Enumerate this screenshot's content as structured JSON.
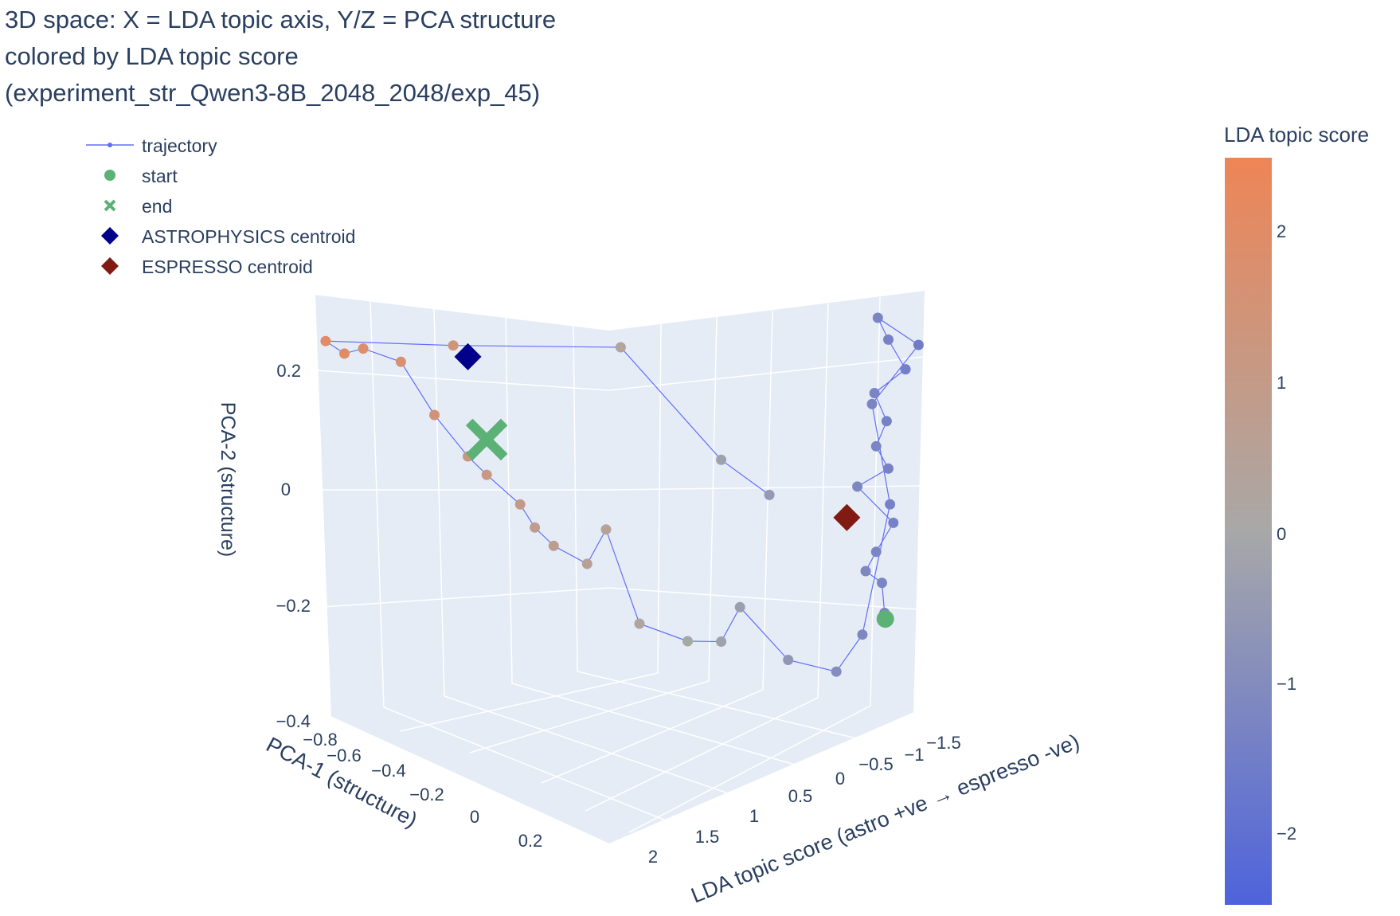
{
  "title": {
    "line1": "3D space: X = LDA topic axis, Y/Z = PCA structure",
    "line2": "colored by LDA topic score",
    "line3": "(experiment_str_Qwen3-8B_2048_2048/exp_45)"
  },
  "legend": {
    "trajectory": "trajectory",
    "start": "start",
    "end": "end",
    "astro": "ASTROPHYSICS centroid",
    "espresso": "ESPRESSO centroid"
  },
  "colorbar": {
    "title": "LDA topic score",
    "ticks": [
      "2",
      "1",
      "0",
      "−1",
      "−2"
    ]
  },
  "colors": {
    "trajectory_line": "#636efa",
    "start_marker": "#5cb176",
    "end_marker": "#5cb176",
    "astro_centroid": "#00008b",
    "espresso_centroid": "#801a12",
    "colorscale_low": "#4e63dc",
    "colorscale_mid": "#a8a8a8",
    "colorscale_high": "#ee8556",
    "scene_bg": "#e5ecf6",
    "grid": "#ffffff"
  },
  "chart_data": {
    "type": "scatter3d",
    "title": "3D space: X = LDA topic axis, Y/Z = PCA structure colored by LDA topic score (experiment_str_Qwen3-8B_2048_2048/exp_45)",
    "axes": {
      "z_label": "PCA-2 (structure)",
      "z_ticks": [
        "0.2",
        "0",
        "−0.2",
        "−0.4"
      ],
      "y_label": "PCA-1 (structure)",
      "y_ticks": [
        "−0.8",
        "−0.6",
        "−0.4",
        "−0.2",
        "0",
        "0.2"
      ],
      "x_label": "LDA topic score (astro +ve → espresso -ve)",
      "x_ticks": [
        "−1.5",
        "−1",
        "−0.5",
        "0",
        "0.5",
        "1",
        "1.5",
        "2"
      ]
    },
    "trajectory_points": [
      {
        "lda": -1.2,
        "pca1": 0.15,
        "pca2": -0.26
      },
      {
        "lda": -1.2,
        "pca1": 0.12,
        "pca2": -0.21
      },
      {
        "lda": -1.1,
        "pca1": 0.1,
        "pca2": -0.19
      },
      {
        "lda": -1.2,
        "pca1": 0.05,
        "pca2": -0.16
      },
      {
        "lda": -1.3,
        "pca1": 0.08,
        "pca2": -0.11
      },
      {
        "lda": -1.1,
        "pca1": 0.0,
        "pca2": -0.05
      },
      {
        "lda": -1.3,
        "pca1": 0.02,
        "pca2": -0.02
      },
      {
        "lda": -1.2,
        "pca1": 0.05,
        "pca2": 0.02
      },
      {
        "lda": -1.3,
        "pca1": 0.0,
        "pca2": 0.06
      },
      {
        "lda": -1.2,
        "pca1": 0.03,
        "pca2": 0.11
      },
      {
        "lda": -1.4,
        "pca1": 0.05,
        "pca2": 0.15
      },
      {
        "lda": -1.3,
        "pca1": 0.02,
        "pca2": 0.2
      },
      {
        "lda": -1.2,
        "pca1": 0.07,
        "pca2": 0.24
      },
      {
        "lda": -1.5,
        "pca1": 0.03,
        "pca2": 0.19
      },
      {
        "lda": -1.2,
        "pca1": 0.0,
        "pca2": 0.09
      },
      {
        "lda": -1.3,
        "pca1": 0.04,
        "pca2": -0.08
      },
      {
        "lda": -1.1,
        "pca1": 0.06,
        "pca2": -0.3
      },
      {
        "lda": -0.9,
        "pca1": 0.1,
        "pca2": -0.36
      },
      {
        "lda": -0.6,
        "pca1": 0.05,
        "pca2": -0.34
      },
      {
        "lda": -0.3,
        "pca1": 0.0,
        "pca2": -0.25
      },
      {
        "lda": -0.2,
        "pca1": -0.05,
        "pca2": -0.31
      },
      {
        "lda": 0.0,
        "pca1": -0.1,
        "pca2": -0.31
      },
      {
        "lda": 0.3,
        "pca1": -0.15,
        "pca2": -0.28
      },
      {
        "lda": 0.5,
        "pca1": -0.2,
        "pca2": -0.12
      },
      {
        "lda": 0.6,
        "pca1": -0.25,
        "pca2": -0.18
      },
      {
        "lda": 0.8,
        "pca1": -0.3,
        "pca2": -0.15
      },
      {
        "lda": 0.9,
        "pca1": -0.35,
        "pca2": -0.12
      },
      {
        "lda": 1.0,
        "pca1": -0.35,
        "pca2": -0.08
      },
      {
        "lda": 1.2,
        "pca1": -0.4,
        "pca2": -0.03
      },
      {
        "lda": 1.3,
        "pca1": -0.45,
        "pca2": 0.0
      },
      {
        "lda": 1.5,
        "pca1": -0.5,
        "pca2": 0.07
      },
      {
        "lda": 1.7,
        "pca1": -0.55,
        "pca2": 0.16
      },
      {
        "lda": 1.9,
        "pca1": -0.65,
        "pca2": 0.18
      },
      {
        "lda": 2.0,
        "pca1": -0.7,
        "pca2": 0.17
      },
      {
        "lda": 2.1,
        "pca1": -0.75,
        "pca2": 0.19
      },
      {
        "lda": 1.4,
        "pca1": -0.45,
        "pca2": 0.19
      },
      {
        "lda": 0.4,
        "pca1": -0.2,
        "pca2": 0.19
      },
      {
        "lda": -0.2,
        "pca1": -0.05,
        "pca2": 0.0
      },
      {
        "lda": -0.5,
        "pca1": 0.0,
        "pca2": -0.06
      }
    ],
    "start": {
      "lda": -1.2,
      "pca1": 0.16,
      "pca2": -0.27
    },
    "end": {
      "lda": 1.2,
      "pca1": -0.4,
      "pca2": 0.03
    },
    "astrophysics_centroid": {
      "lda": 1.3,
      "pca1": -0.45,
      "pca2": 0.17
    },
    "espresso_centroid": {
      "lda": -1.0,
      "pca1": 0.05,
      "pca2": -0.1
    },
    "color_range": [
      -2.4,
      2.5
    ]
  }
}
